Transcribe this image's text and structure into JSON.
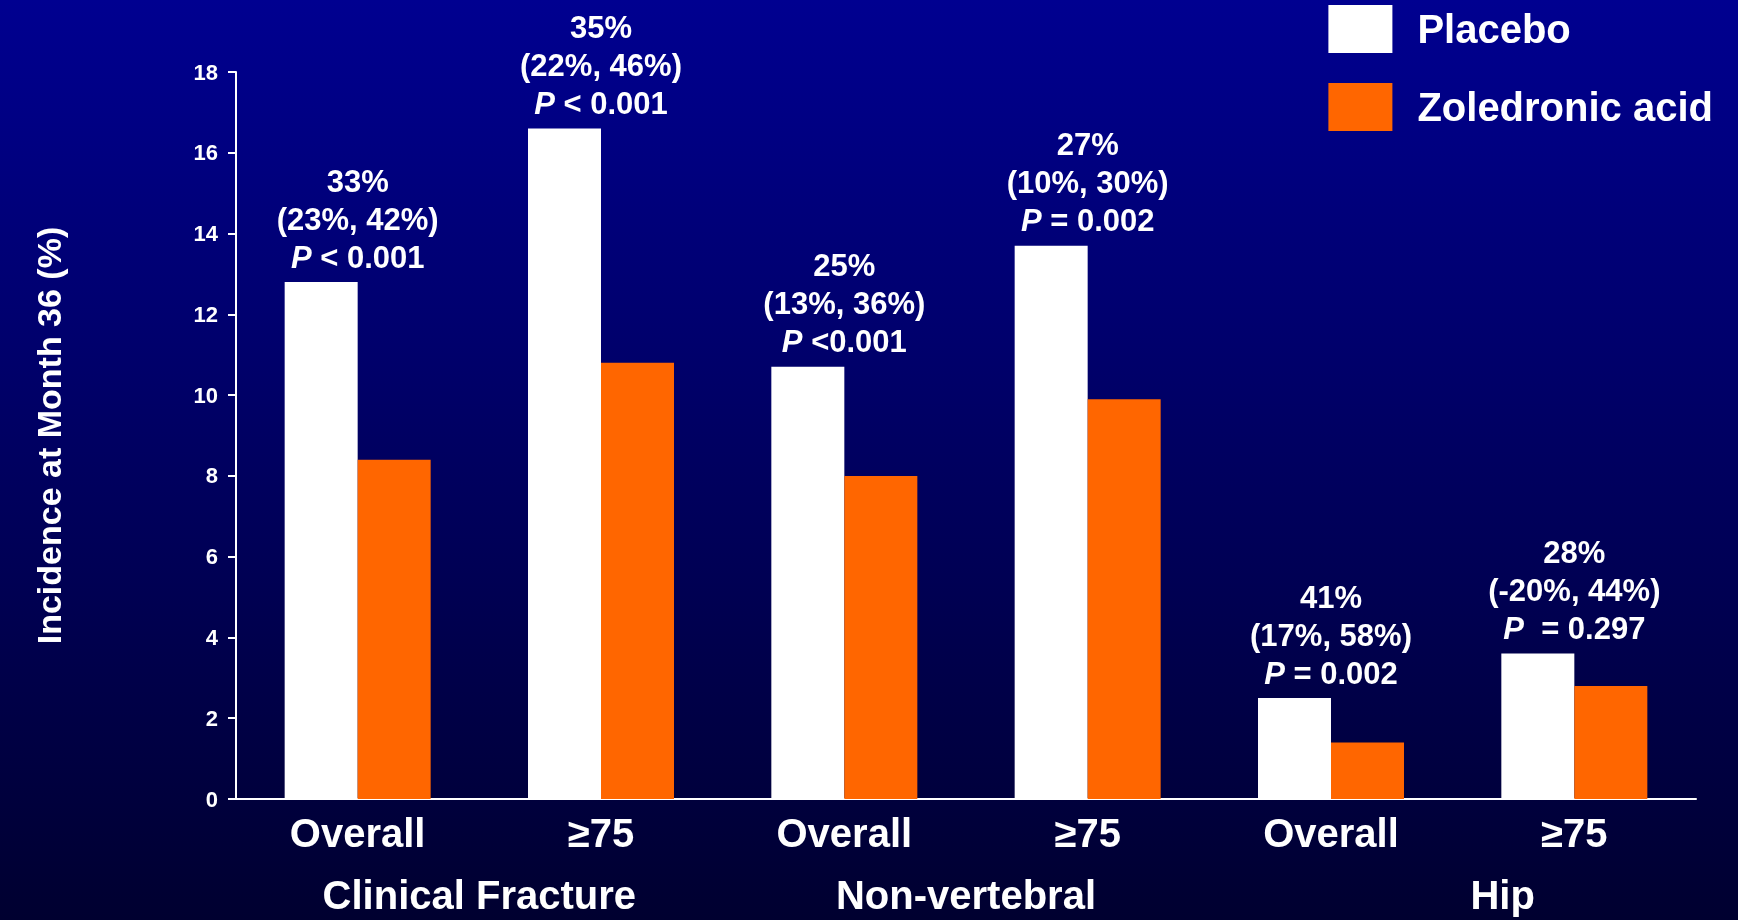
{
  "chart_data": {
    "type": "bar",
    "ylabel": "Incidence at Month 36 (%)",
    "categories": [
      "Overall",
      "≥75",
      "Overall",
      "≥75",
      "Overall",
      "≥75"
    ],
    "series": [
      {
        "name": "Placebo",
        "color": "#ffffff",
        "values": [
          12.8,
          16.6,
          10.7,
          13.7,
          2.5,
          3.6
        ]
      },
      {
        "name": "Zoledronic acid",
        "color": "#ff6600",
        "values": [
          8.4,
          10.8,
          8.0,
          9.9,
          1.4,
          2.8
        ]
      }
    ],
    "ylim": [
      0,
      18
    ],
    "yticks": [
      0,
      2,
      4,
      6,
      8,
      10,
      12,
      14,
      16,
      18
    ],
    "grid": false,
    "legend": "top right",
    "annotations": [
      "33%\n(23%, 42%)\nP < 0.001",
      "35%\n(22%, 46%)\nP < 0.001",
      "25%\n(13%, 36%)\nP <0.001",
      "27%\n(10%, 30%)\nP = 0.002",
      "41%\n(17%, 58%)\nP = 0.002",
      "28%\n(-20%, 44%)\nP  = 0.297",
      "Clinical Fracture",
      "Non-vertebral",
      "Hip"
    ]
  }
}
